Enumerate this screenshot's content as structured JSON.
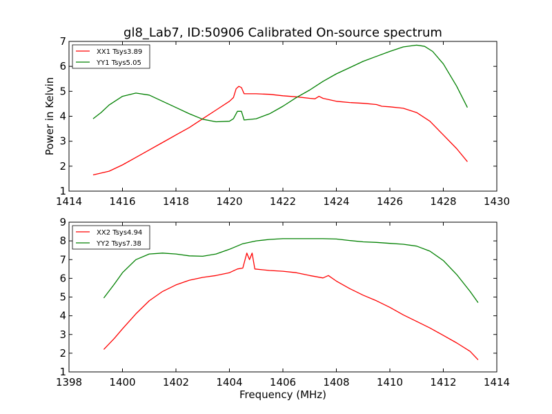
{
  "title": "gl8_Lab7, ID:50906 Calibrated On-source spectrum",
  "colors": {
    "red": "#ff0000",
    "green": "#008000",
    "axes": "#000000",
    "background": "#ffffff"
  },
  "chart_data": [
    {
      "type": "line",
      "ylabel": "Power in Kelvin",
      "xlabel": "",
      "xlim": [
        1414,
        1430
      ],
      "ylim": [
        1,
        7
      ],
      "xticks": [
        "1414",
        "1416",
        "1418",
        "1420",
        "1422",
        "1424",
        "1426",
        "1428",
        "1430"
      ],
      "yticks": [
        "1",
        "2",
        "3",
        "4",
        "5",
        "6",
        "7"
      ],
      "legend_position": "top-left",
      "grid": false,
      "series": [
        {
          "name": "XX1 Tsys3.89",
          "color": "#ff0000",
          "points": [
            [
              1414.9,
              1.65
            ],
            [
              1415.5,
              1.8
            ],
            [
              1416.0,
              2.05
            ],
            [
              1416.5,
              2.35
            ],
            [
              1417.0,
              2.65
            ],
            [
              1417.5,
              2.95
            ],
            [
              1418.0,
              3.25
            ],
            [
              1418.5,
              3.55
            ],
            [
              1419.0,
              3.9
            ],
            [
              1419.5,
              4.25
            ],
            [
              1420.0,
              4.6
            ],
            [
              1420.15,
              4.75
            ],
            [
              1420.25,
              5.1
            ],
            [
              1420.35,
              5.2
            ],
            [
              1420.45,
              5.15
            ],
            [
              1420.55,
              4.9
            ],
            [
              1421.0,
              4.9
            ],
            [
              1421.5,
              4.88
            ],
            [
              1422.0,
              4.82
            ],
            [
              1422.5,
              4.78
            ],
            [
              1423.0,
              4.72
            ],
            [
              1423.2,
              4.7
            ],
            [
              1423.35,
              4.8
            ],
            [
              1423.5,
              4.72
            ],
            [
              1424.0,
              4.6
            ],
            [
              1424.5,
              4.55
            ],
            [
              1425.0,
              4.52
            ],
            [
              1425.5,
              4.47
            ],
            [
              1425.7,
              4.4
            ],
            [
              1426.0,
              4.38
            ],
            [
              1426.5,
              4.32
            ],
            [
              1427.0,
              4.15
            ],
            [
              1427.5,
              3.8
            ],
            [
              1428.0,
              3.25
            ],
            [
              1428.5,
              2.7
            ],
            [
              1428.9,
              2.18
            ]
          ]
        },
        {
          "name": "YY1 Tsys5.05",
          "color": "#008000",
          "points": [
            [
              1414.9,
              3.9
            ],
            [
              1415.2,
              4.15
            ],
            [
              1415.5,
              4.45
            ],
            [
              1416.0,
              4.8
            ],
            [
              1416.5,
              4.93
            ],
            [
              1417.0,
              4.85
            ],
            [
              1417.5,
              4.6
            ],
            [
              1418.0,
              4.35
            ],
            [
              1418.5,
              4.1
            ],
            [
              1419.0,
              3.88
            ],
            [
              1419.5,
              3.78
            ],
            [
              1420.0,
              3.8
            ],
            [
              1420.15,
              3.9
            ],
            [
              1420.3,
              4.2
            ],
            [
              1420.45,
              4.2
            ],
            [
              1420.55,
              3.85
            ],
            [
              1421.0,
              3.9
            ],
            [
              1421.5,
              4.1
            ],
            [
              1422.0,
              4.4
            ],
            [
              1422.5,
              4.75
            ],
            [
              1423.0,
              5.05
            ],
            [
              1423.5,
              5.4
            ],
            [
              1424.0,
              5.7
            ],
            [
              1424.5,
              5.95
            ],
            [
              1425.0,
              6.2
            ],
            [
              1425.5,
              6.4
            ],
            [
              1426.0,
              6.6
            ],
            [
              1426.5,
              6.78
            ],
            [
              1427.0,
              6.85
            ],
            [
              1427.3,
              6.8
            ],
            [
              1427.6,
              6.6
            ],
            [
              1428.0,
              6.1
            ],
            [
              1428.5,
              5.2
            ],
            [
              1428.9,
              4.35
            ]
          ]
        }
      ]
    },
    {
      "type": "line",
      "xlabel": "Frequency (MHz)",
      "ylabel": "",
      "xlim": [
        1398,
        1414
      ],
      "ylim": [
        1,
        9
      ],
      "xticks": [
        "1398",
        "1400",
        "1402",
        "1404",
        "1406",
        "1408",
        "1410",
        "1412",
        "1414"
      ],
      "yticks": [
        "1",
        "2",
        "3",
        "4",
        "5",
        "6",
        "7",
        "8",
        "9"
      ],
      "legend_position": "top-left",
      "grid": false,
      "series": [
        {
          "name": "XX2 Tsys4.94",
          "color": "#ff0000",
          "points": [
            [
              1399.3,
              2.2
            ],
            [
              1399.7,
              2.8
            ],
            [
              1400.0,
              3.3
            ],
            [
              1400.5,
              4.1
            ],
            [
              1401.0,
              4.8
            ],
            [
              1401.5,
              5.3
            ],
            [
              1402.0,
              5.65
            ],
            [
              1402.5,
              5.9
            ],
            [
              1403.0,
              6.05
            ],
            [
              1403.5,
              6.15
            ],
            [
              1404.0,
              6.3
            ],
            [
              1404.3,
              6.5
            ],
            [
              1404.5,
              6.55
            ],
            [
              1404.65,
              7.35
            ],
            [
              1404.75,
              7.0
            ],
            [
              1404.85,
              7.35
            ],
            [
              1404.95,
              6.5
            ],
            [
              1405.5,
              6.42
            ],
            [
              1406.0,
              6.38
            ],
            [
              1406.5,
              6.3
            ],
            [
              1407.0,
              6.15
            ],
            [
              1407.5,
              6.02
            ],
            [
              1407.7,
              6.15
            ],
            [
              1408.0,
              5.85
            ],
            [
              1408.5,
              5.45
            ],
            [
              1409.0,
              5.1
            ],
            [
              1409.5,
              4.8
            ],
            [
              1410.0,
              4.45
            ],
            [
              1410.5,
              4.05
            ],
            [
              1411.0,
              3.7
            ],
            [
              1411.5,
              3.35
            ],
            [
              1412.0,
              2.95
            ],
            [
              1412.5,
              2.55
            ],
            [
              1413.0,
              2.1
            ],
            [
              1413.3,
              1.65
            ]
          ]
        },
        {
          "name": "YY2 Tsys7.38",
          "color": "#008000",
          "points": [
            [
              1399.3,
              4.95
            ],
            [
              1399.7,
              5.7
            ],
            [
              1400.0,
              6.3
            ],
            [
              1400.5,
              7.0
            ],
            [
              1401.0,
              7.3
            ],
            [
              1401.5,
              7.35
            ],
            [
              1402.0,
              7.3
            ],
            [
              1402.5,
              7.2
            ],
            [
              1403.0,
              7.18
            ],
            [
              1403.5,
              7.3
            ],
            [
              1404.0,
              7.55
            ],
            [
              1404.5,
              7.85
            ],
            [
              1405.0,
              8.0
            ],
            [
              1405.5,
              8.08
            ],
            [
              1406.0,
              8.12
            ],
            [
              1406.5,
              8.12
            ],
            [
              1407.0,
              8.12
            ],
            [
              1407.5,
              8.12
            ],
            [
              1408.0,
              8.1
            ],
            [
              1408.5,
              8.02
            ],
            [
              1409.0,
              7.95
            ],
            [
              1409.5,
              7.92
            ],
            [
              1410.0,
              7.87
            ],
            [
              1410.5,
              7.82
            ],
            [
              1411.0,
              7.72
            ],
            [
              1411.5,
              7.45
            ],
            [
              1412.0,
              6.95
            ],
            [
              1412.5,
              6.2
            ],
            [
              1413.0,
              5.3
            ],
            [
              1413.3,
              4.7
            ]
          ]
        }
      ]
    }
  ]
}
